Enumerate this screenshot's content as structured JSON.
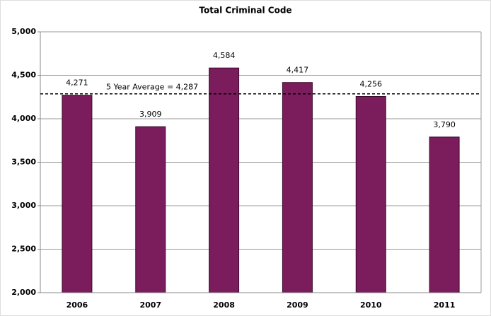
{
  "chart_data": {
    "type": "bar",
    "title": "Total Criminal Code",
    "categories": [
      "2006",
      "2007",
      "2008",
      "2009",
      "2010",
      "2011"
    ],
    "values": [
      4271,
      3909,
      4584,
      4417,
      4256,
      3790
    ],
    "value_labels": [
      "4,271",
      "3,909",
      "4,584",
      "4,417",
      "4,256",
      "3,790"
    ],
    "color": "#7b1c5c",
    "ylim": [
      2000,
      5000
    ],
    "yticks": [
      {
        "value": 2000,
        "label": "2,000"
      },
      {
        "value": 2500,
        "label": "2,500"
      },
      {
        "value": 3000,
        "label": "3,000"
      },
      {
        "value": 3500,
        "label": "3,500"
      },
      {
        "value": 4000,
        "label": "4,000"
      },
      {
        "value": 4500,
        "label": "4,500"
      },
      {
        "value": 5000,
        "label": "5,000"
      }
    ],
    "grid": true,
    "average": {
      "value": 4287,
      "label": "5 Year Average = 4,287"
    }
  }
}
